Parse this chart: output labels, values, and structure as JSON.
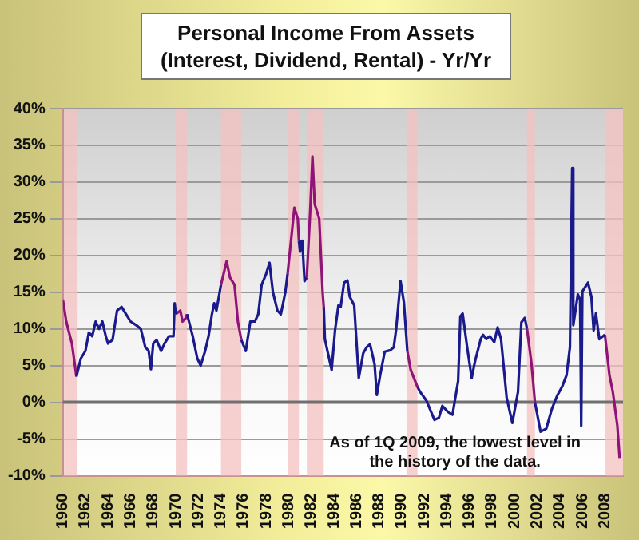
{
  "chart_data": {
    "type": "line",
    "title": "Personal Income From Assets\n(Interest, Dividend, Rental) - Yr/Yr",
    "marker": "none",
    "grid": "y",
    "legend": false,
    "xlim": [
      1960,
      2009.6
    ],
    "xticks": [
      1960,
      1962,
      1964,
      1966,
      1968,
      1970,
      1972,
      1974,
      1976,
      1978,
      1980,
      1982,
      1984,
      1986,
      1988,
      1990,
      1992,
      1994,
      1996,
      1998,
      2000,
      2002,
      2004,
      2006,
      2008
    ],
    "ylim": [
      -10,
      40
    ],
    "yticks": [
      {
        "value": -10,
        "label": "-10%"
      },
      {
        "value": -5,
        "label": "-5%"
      },
      {
        "value": 0,
        "label": "0%"
      },
      {
        "value": 5,
        "label": "5%"
      },
      {
        "value": 10,
        "label": "10%"
      },
      {
        "value": 15,
        "label": "15%"
      },
      {
        "value": 20,
        "label": "20%"
      },
      {
        "value": 25,
        "label": "25%"
      },
      {
        "value": 30,
        "label": "30%"
      },
      {
        "value": 35,
        "label": "35%"
      },
      {
        "value": 40,
        "label": "40%"
      }
    ],
    "bands": [
      {
        "axis": "x",
        "from": 1960.1,
        "to": 1961.3,
        "color": "#f4c0c0"
      },
      {
        "axis": "x",
        "from": 1970.0,
        "to": 1971.0,
        "color": "#f4c0c0"
      },
      {
        "axis": "x",
        "from": 1974.0,
        "to": 1975.8,
        "color": "#f4c0c0"
      },
      {
        "axis": "x",
        "from": 1979.9,
        "to": 1980.9,
        "color": "#f4c0c0"
      },
      {
        "axis": "x",
        "from": 1981.6,
        "to": 1983.1,
        "color": "#f4c0c0"
      },
      {
        "axis": "x",
        "from": 1990.5,
        "to": 1991.4,
        "color": "#f4c0c0"
      },
      {
        "axis": "x",
        "from": 2001.1,
        "to": 2001.8,
        "color": "#f4c0c0"
      },
      {
        "axis": "x",
        "from": 2008.0,
        "to": 2009.6,
        "color": "#f4c0c0"
      }
    ],
    "ref_lines": [
      {
        "axis": "y",
        "value": 0,
        "color": "#707070"
      }
    ],
    "annotations": [
      "As of 1Q 2009, the lowest level in\nthe history of the data."
    ],
    "series": [
      {
        "color": "#1a1a8c",
        "x": [
          1961.2,
          1961.6,
          1962.0,
          1962.3,
          1962.6,
          1962.9,
          1963.2,
          1963.5,
          1963.8,
          1964.0,
          1964.4,
          1964.8,
          1965.2,
          1965.6,
          1966.0,
          1966.5,
          1966.9,
          1967.3,
          1967.6,
          1967.8,
          1968.0,
          1968.3,
          1968.7,
          1969.0,
          1969.4,
          1969.8,
          1969.9,
          1970.0,
          1970.5,
          1971.0,
          1971.5,
          1971.9,
          1972.2,
          1972.6,
          1972.9,
          1973.2,
          1973.4,
          1973.6,
          1974.0,
          1975.0,
          1975.8,
          1976.2,
          1976.6,
          1977.0,
          1977.3,
          1977.6,
          1978.0,
          1978.3,
          1978.6,
          1979.0,
          1979.3,
          1979.7,
          1979.9,
          1980.4,
          1980.9,
          1981.0,
          1981.2,
          1981.4,
          1981.6,
          1982.3,
          1983.1,
          1983.2,
          1983.8,
          1984.1,
          1984.4,
          1984.6,
          1984.9,
          1985.2,
          1985.4,
          1985.8,
          1986.2,
          1986.6,
          1986.9,
          1987.2,
          1987.6,
          1987.8,
          1988.1,
          1988.5,
          1989.0,
          1989.3,
          1989.5,
          1989.9,
          1990.2,
          1990.5,
          1991.0,
          1991.4,
          1991.6,
          1992.2,
          1992.9,
          1993.3,
          1993.6,
          1994.1,
          1994.5,
          1995.0,
          1995.2,
          1995.4,
          1995.8,
          1996.2,
          1996.5,
          1997.0,
          1997.2,
          1997.5,
          1997.8,
          1998.2,
          1998.5,
          1998.8,
          1999.3,
          1999.8,
          2000.3,
          2000.6,
          2000.9,
          2001.1,
          2001.5,
          2001.8,
          2002.3,
          2002.8,
          2003.3,
          2003.8,
          2004.2,
          2004.6,
          2004.9,
          2005.1,
          2005.2,
          2005.6,
          2005.8,
          2005.9,
          2006.0,
          2006.5,
          2006.8,
          2007.0,
          2007.2,
          2007.5,
          2008.0
        ],
        "values": [
          3.5,
          6,
          7,
          9.5,
          9,
          11,
          10,
          11,
          9,
          8,
          8.5,
          12.5,
          13,
          12,
          11,
          10.5,
          10,
          7.5,
          7,
          4.5,
          8,
          8.5,
          7,
          8,
          9,
          9,
          13.5,
          12,
          null,
          12,
          9,
          6,
          5,
          7,
          9,
          12,
          13.5,
          12.5,
          16,
          null,
          8.5,
          7,
          11,
          11,
          12,
          16,
          17.5,
          19,
          15,
          12.5,
          12,
          15,
          17.5,
          null,
          22,
          20.5,
          22,
          16.5,
          17,
          null,
          13,
          8.6,
          4.4,
          9.8,
          13.2,
          13,
          16.3,
          16.6,
          14.4,
          13.2,
          3.3,
          6.7,
          7.5,
          7.9,
          5.2,
          1,
          3.7,
          6.9,
          7.1,
          7.5,
          9.8,
          16.5,
          13.6,
          7,
          null,
          2.1,
          1.5,
          0.2,
          -2.4,
          -2.1,
          -0.5,
          -1.3,
          -1.7,
          2.9,
          11.7,
          12.1,
          7.5,
          3.3,
          5.6,
          8.6,
          9.2,
          8.6,
          9,
          8.2,
          10.2,
          8.6,
          0.6,
          -2.8,
          1.4,
          10.9,
          11.5,
          10,
          null,
          0,
          -4,
          -3.6,
          -0.9,
          1,
          2.1,
          3.7,
          7.5,
          31.9,
          10.5,
          14.7,
          14,
          -3.2,
          15.1,
          16.3,
          14.4,
          9.8,
          12.1,
          8.6,
          9.2
        ]
      },
      {
        "color": "#8e1478",
        "x": [
          1960.0,
          1960.3,
          1960.8,
          1961.2,
          1965.0,
          1970.0,
          1970.4,
          1970.6,
          1970.9,
          1971.0,
          1972.5,
          1974.0,
          1974.5,
          1974.8,
          1975.2,
          1975.5,
          1975.8,
          1977.0,
          1979.9,
          1980.5,
          1980.8,
          1980.9,
          1981.2,
          1981.6,
          1981.9,
          1982.1,
          1982.3,
          1982.7,
          1983.0,
          1983.1,
          1987.0,
          1990.5,
          1990.8,
          1991.4,
          1996.0,
          2001.1,
          2001.5,
          2001.8,
          2005.0,
          2008.0,
          2008.4,
          2008.7,
          2009.1,
          2009.3
        ],
        "values": [
          14,
          11,
          8,
          3.5,
          null,
          12,
          12.5,
          11,
          11.5,
          12,
          null,
          16,
          19.2,
          17,
          16,
          11,
          8.5,
          null,
          17.5,
          26.5,
          25,
          22,
          null,
          17,
          26,
          33.5,
          27,
          25,
          15,
          13,
          null,
          7,
          4.4,
          2.1,
          null,
          10,
          5.2,
          0,
          null,
          9.2,
          3.7,
          1.4,
          -3.2,
          -7.6
        ]
      }
    ]
  }
}
